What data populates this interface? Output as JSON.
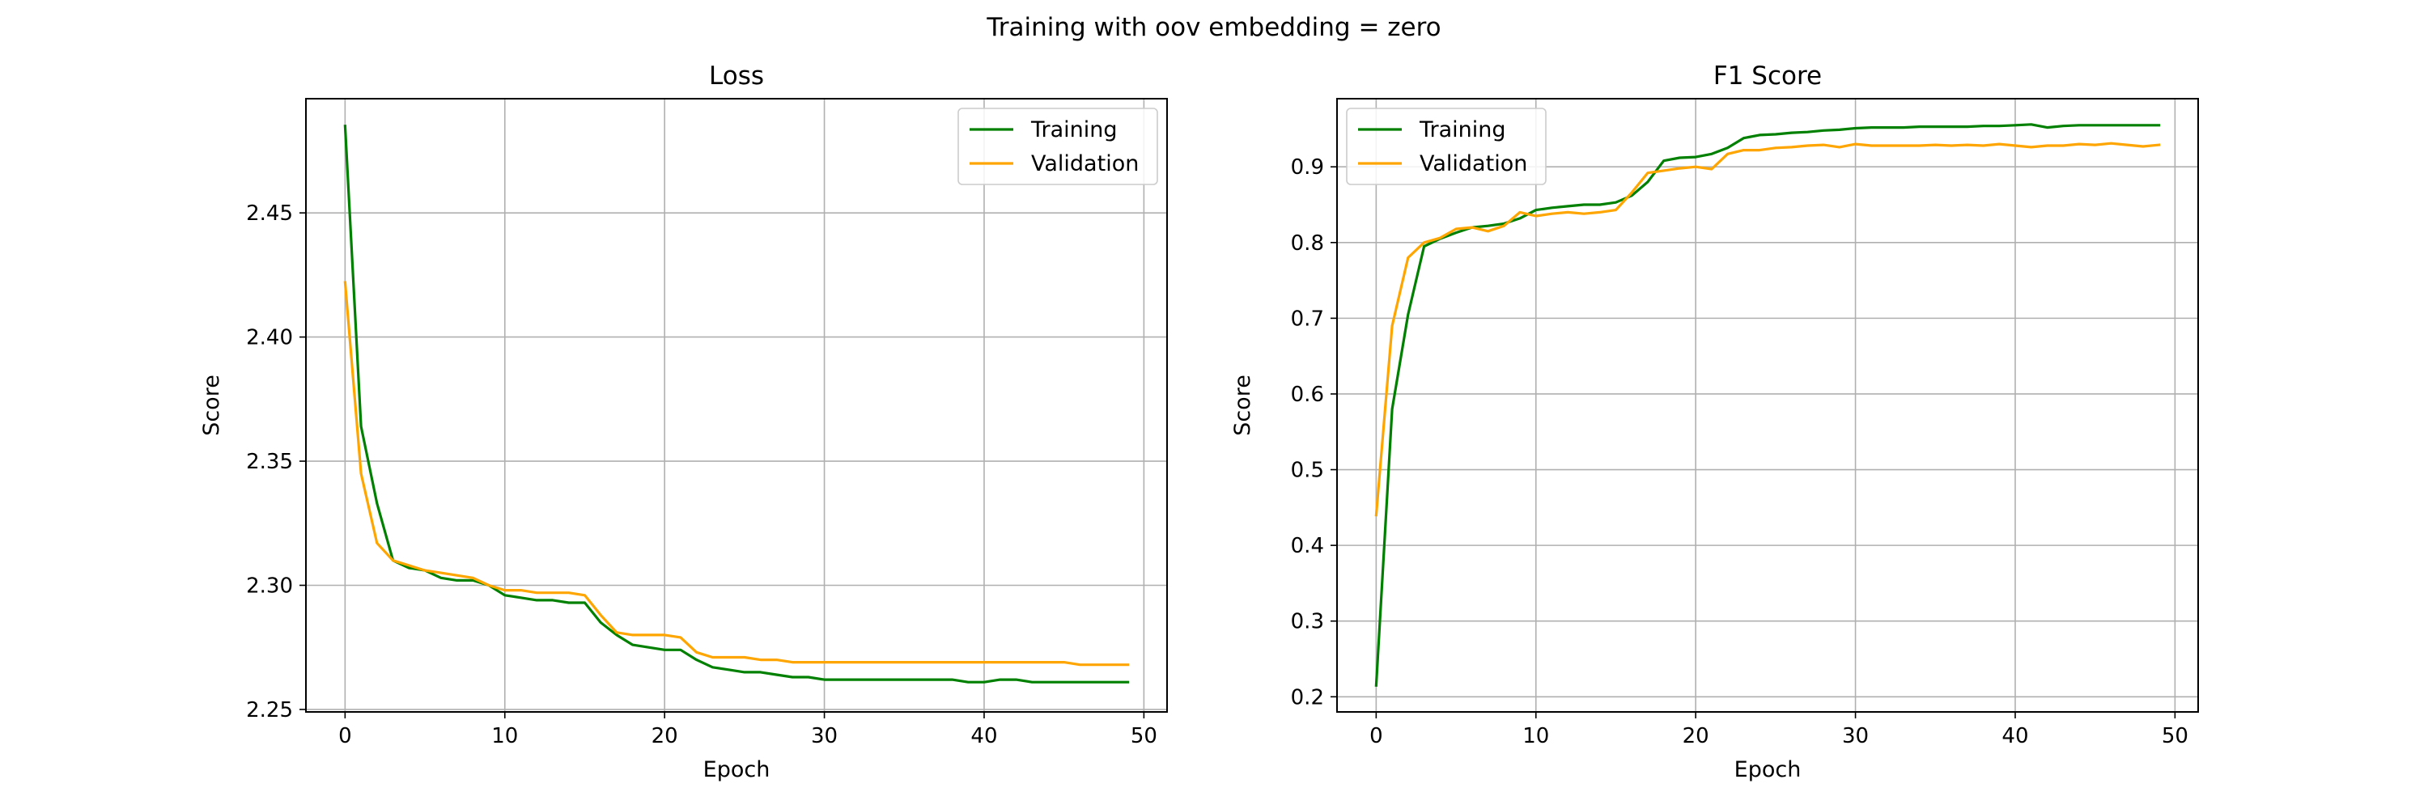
{
  "figure": {
    "suptitle": "Training with oov embedding = zero"
  },
  "chart_data": [
    {
      "type": "line",
      "title": "Loss",
      "xlabel": "Epoch",
      "ylabel": "Score",
      "xlim": [
        -2.45,
        51.45
      ],
      "ylim": [
        2.249,
        2.496
      ],
      "xticks": [
        0,
        10,
        20,
        30,
        40,
        50
      ],
      "xtick_labels": [
        "0",
        "10",
        "20",
        "30",
        "40",
        "50"
      ],
      "yticks": [
        2.25,
        2.3,
        2.35,
        2.4,
        2.45
      ],
      "ytick_labels": [
        "2.25",
        "2.30",
        "2.35",
        "2.40",
        "2.45"
      ],
      "grid": true,
      "legend_position": "top-right",
      "x": [
        0,
        1,
        2,
        3,
        4,
        5,
        6,
        7,
        8,
        9,
        10,
        11,
        12,
        13,
        14,
        15,
        16,
        17,
        18,
        19,
        20,
        21,
        22,
        23,
        24,
        25,
        26,
        27,
        28,
        29,
        30,
        31,
        32,
        33,
        34,
        35,
        36,
        37,
        38,
        39,
        40,
        41,
        42,
        43,
        44,
        45,
        46,
        47,
        48,
        49
      ],
      "series": [
        {
          "name": "Training",
          "color": "#008000",
          "values": [
            2.485,
            2.364,
            2.333,
            2.31,
            2.307,
            2.306,
            2.303,
            2.302,
            2.302,
            2.3,
            2.296,
            2.295,
            2.294,
            2.294,
            2.293,
            2.293,
            2.285,
            2.28,
            2.276,
            2.275,
            2.274,
            2.274,
            2.27,
            2.267,
            2.266,
            2.265,
            2.265,
            2.264,
            2.263,
            2.263,
            2.262,
            2.262,
            2.262,
            2.262,
            2.262,
            2.262,
            2.262,
            2.262,
            2.262,
            2.261,
            2.261,
            2.262,
            2.262,
            2.261,
            2.261,
            2.261,
            2.261,
            2.261,
            2.261,
            2.261
          ]
        },
        {
          "name": "Validation",
          "color": "#FFA500",
          "values": [
            2.422,
            2.345,
            2.317,
            2.31,
            2.308,
            2.306,
            2.305,
            2.304,
            2.303,
            2.3,
            2.298,
            2.298,
            2.297,
            2.297,
            2.297,
            2.296,
            2.288,
            2.281,
            2.28,
            2.28,
            2.28,
            2.279,
            2.273,
            2.271,
            2.271,
            2.271,
            2.27,
            2.27,
            2.269,
            2.269,
            2.269,
            2.269,
            2.269,
            2.269,
            2.269,
            2.269,
            2.269,
            2.269,
            2.269,
            2.269,
            2.269,
            2.269,
            2.269,
            2.269,
            2.269,
            2.269,
            2.268,
            2.268,
            2.268,
            2.268
          ]
        }
      ]
    },
    {
      "type": "line",
      "title": "F1 Score",
      "xlabel": "Epoch",
      "ylabel": "Score",
      "xlim": [
        -2.45,
        51.45
      ],
      "ylim": [
        0.18,
        0.99
      ],
      "xticks": [
        0,
        10,
        20,
        30,
        40,
        50
      ],
      "xtick_labels": [
        "0",
        "10",
        "20",
        "30",
        "40",
        "50"
      ],
      "yticks": [
        0.2,
        0.3,
        0.4,
        0.5,
        0.6,
        0.7,
        0.8,
        0.9
      ],
      "ytick_labels": [
        "0.2",
        "0.3",
        "0.4",
        "0.5",
        "0.6",
        "0.7",
        "0.8",
        "0.9"
      ],
      "grid": true,
      "legend_position": "top-left",
      "x": [
        0,
        1,
        2,
        3,
        4,
        5,
        6,
        7,
        8,
        9,
        10,
        11,
        12,
        13,
        14,
        15,
        16,
        17,
        18,
        19,
        20,
        21,
        22,
        23,
        24,
        25,
        26,
        27,
        28,
        29,
        30,
        31,
        32,
        33,
        34,
        35,
        36,
        37,
        38,
        39,
        40,
        41,
        42,
        43,
        44,
        45,
        46,
        47,
        48,
        49
      ],
      "series": [
        {
          "name": "Training",
          "color": "#008000",
          "values": [
            0.215,
            0.58,
            0.705,
            0.795,
            0.805,
            0.813,
            0.82,
            0.822,
            0.825,
            0.832,
            0.843,
            0.846,
            0.848,
            0.85,
            0.85,
            0.853,
            0.862,
            0.88,
            0.908,
            0.912,
            0.913,
            0.917,
            0.925,
            0.938,
            0.942,
            0.943,
            0.945,
            0.946,
            0.948,
            0.949,
            0.951,
            0.952,
            0.952,
            0.952,
            0.953,
            0.953,
            0.953,
            0.953,
            0.954,
            0.954,
            0.955,
            0.956,
            0.952,
            0.954,
            0.955,
            0.955,
            0.955,
            0.955,
            0.955,
            0.955
          ]
        },
        {
          "name": "Validation",
          "color": "#FFA500",
          "values": [
            0.44,
            0.69,
            0.78,
            0.8,
            0.806,
            0.818,
            0.82,
            0.815,
            0.822,
            0.84,
            0.835,
            0.838,
            0.84,
            0.838,
            0.84,
            0.843,
            0.866,
            0.892,
            0.895,
            0.898,
            0.9,
            0.897,
            0.917,
            0.922,
            0.922,
            0.925,
            0.926,
            0.928,
            0.929,
            0.926,
            0.93,
            0.928,
            0.928,
            0.928,
            0.928,
            0.929,
            0.928,
            0.929,
            0.928,
            0.93,
            0.928,
            0.926,
            0.928,
            0.928,
            0.93,
            0.929,
            0.931,
            0.929,
            0.927,
            0.929
          ]
        }
      ]
    }
  ]
}
